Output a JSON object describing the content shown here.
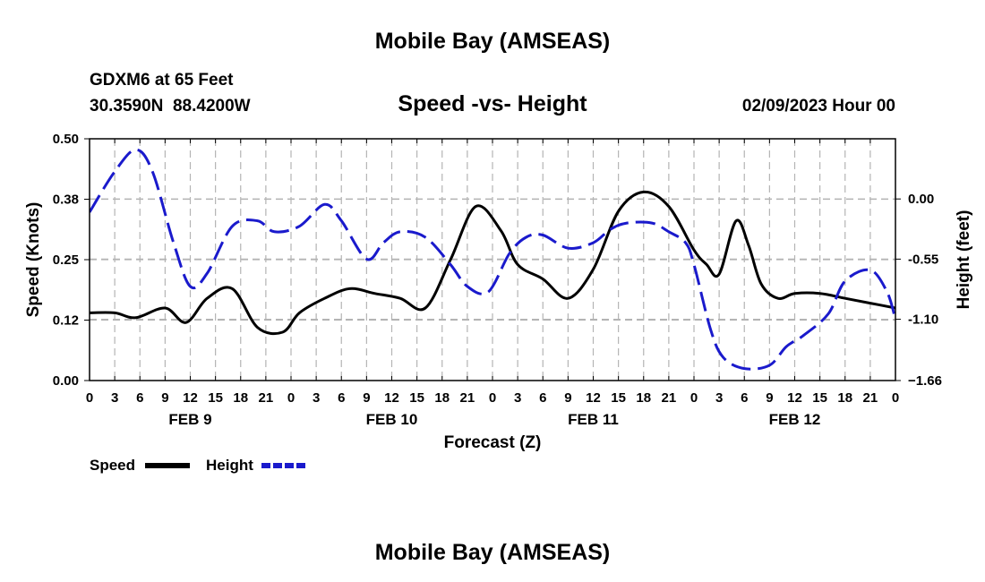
{
  "page_title": "Mobile Bay (AMSEAS)",
  "footer_title": "Mobile Bay (AMSEAS)",
  "station": {
    "name": "GDXM6 at 65 Feet",
    "coords": "30.3590N  88.4200W",
    "date": "02/09/2023 Hour 00"
  },
  "colors": {
    "speed": "#000000",
    "height": "#1a1acc",
    "grid": "#b4b4b4"
  },
  "chart_data": {
    "type": "line",
    "title": "Speed -vs- Height",
    "xlabel": "Forecast (Z)",
    "ylabel": "Speed (Knots)",
    "y2label": "Height (feet)",
    "x_range_hours": [
      0,
      96
    ],
    "ylim": [
      0,
      0.5
    ],
    "y2lim": [
      -1.66,
      0.55
    ],
    "y_ticks": [
      {
        "value": 0.0,
        "label": "0.00"
      },
      {
        "value": 0.125,
        "label": "0.12"
      },
      {
        "value": 0.25,
        "label": "0.25"
      },
      {
        "value": 0.375,
        "label": "0.38"
      },
      {
        "value": 0.5,
        "label": "0.50"
      }
    ],
    "y2_ticks": [
      {
        "value": 0.0,
        "label": "0.00"
      },
      {
        "value": -0.55,
        "label": "-0.55"
      },
      {
        "value": -1.1,
        "label": "-1.10"
      },
      {
        "value": -1.66,
        "label": "−1.66"
      }
    ],
    "x_tick_labels": [
      "0",
      "3",
      "6",
      "9",
      "12",
      "15",
      "18",
      "21",
      "0",
      "3",
      "6",
      "9",
      "12",
      "15",
      "18",
      "21",
      "0",
      "3",
      "6",
      "9",
      "12",
      "15",
      "18",
      "21",
      "0",
      "3",
      "6",
      "9",
      "12",
      "15",
      "18",
      "21",
      "0"
    ],
    "day_labels": [
      {
        "hour": 12,
        "label": "FEB 9"
      },
      {
        "hour": 36,
        "label": "FEB 10"
      },
      {
        "hour": 60,
        "label": "FEB 11"
      },
      {
        "hour": 84,
        "label": "FEB 12"
      }
    ],
    "legend": [
      {
        "name": "Speed",
        "style": "solid",
        "color_key": "speed"
      },
      {
        "name": "Height",
        "style": "dashed",
        "color_key": "height"
      }
    ],
    "series": [
      {
        "name": "Speed",
        "axis": "left",
        "x": [
          0,
          3,
          5.5,
          9,
          11.5,
          14,
          17,
          20,
          23,
          25,
          28,
          31,
          34,
          37,
          40,
          43,
          46,
          49,
          51,
          54,
          57,
          60,
          63,
          66,
          69,
          72,
          73.5,
          75,
          77,
          78.5,
          80,
          82,
          84,
          87,
          90,
          93,
          96
        ],
        "y": [
          0.14,
          0.14,
          0.13,
          0.15,
          0.12,
          0.17,
          0.19,
          0.11,
          0.1,
          0.14,
          0.17,
          0.19,
          0.18,
          0.17,
          0.15,
          0.25,
          0.36,
          0.31,
          0.24,
          0.21,
          0.17,
          0.23,
          0.35,
          0.39,
          0.36,
          0.27,
          0.24,
          0.22,
          0.33,
          0.28,
          0.2,
          0.17,
          0.18,
          0.18,
          0.17,
          0.16,
          0.15
        ]
      },
      {
        "name": "Height",
        "axis": "right",
        "x": [
          0,
          3,
          5.5,
          7.5,
          10,
          12,
          14,
          17,
          20,
          22,
          25,
          28,
          30,
          33,
          35,
          37,
          40,
          43,
          45,
          47.5,
          50,
          52,
          54,
          57,
          60,
          62,
          64,
          67,
          69,
          71,
          72,
          74,
          75.5,
          78,
          81,
          83,
          85,
          88,
          90,
          93,
          95,
          96
        ],
        "y": [
          -0.12,
          0.25,
          0.45,
          0.25,
          -0.4,
          -0.8,
          -0.68,
          -0.25,
          -0.2,
          -0.3,
          -0.25,
          -0.05,
          -0.2,
          -0.55,
          -0.4,
          -0.3,
          -0.35,
          -0.6,
          -0.8,
          -0.85,
          -0.5,
          -0.35,
          -0.33,
          -0.45,
          -0.4,
          -0.28,
          -0.22,
          -0.22,
          -0.3,
          -0.4,
          -0.6,
          -1.2,
          -1.45,
          -1.55,
          -1.52,
          -1.35,
          -1.25,
          -1.05,
          -0.75,
          -0.65,
          -0.85,
          -1.1
        ]
      }
    ]
  }
}
